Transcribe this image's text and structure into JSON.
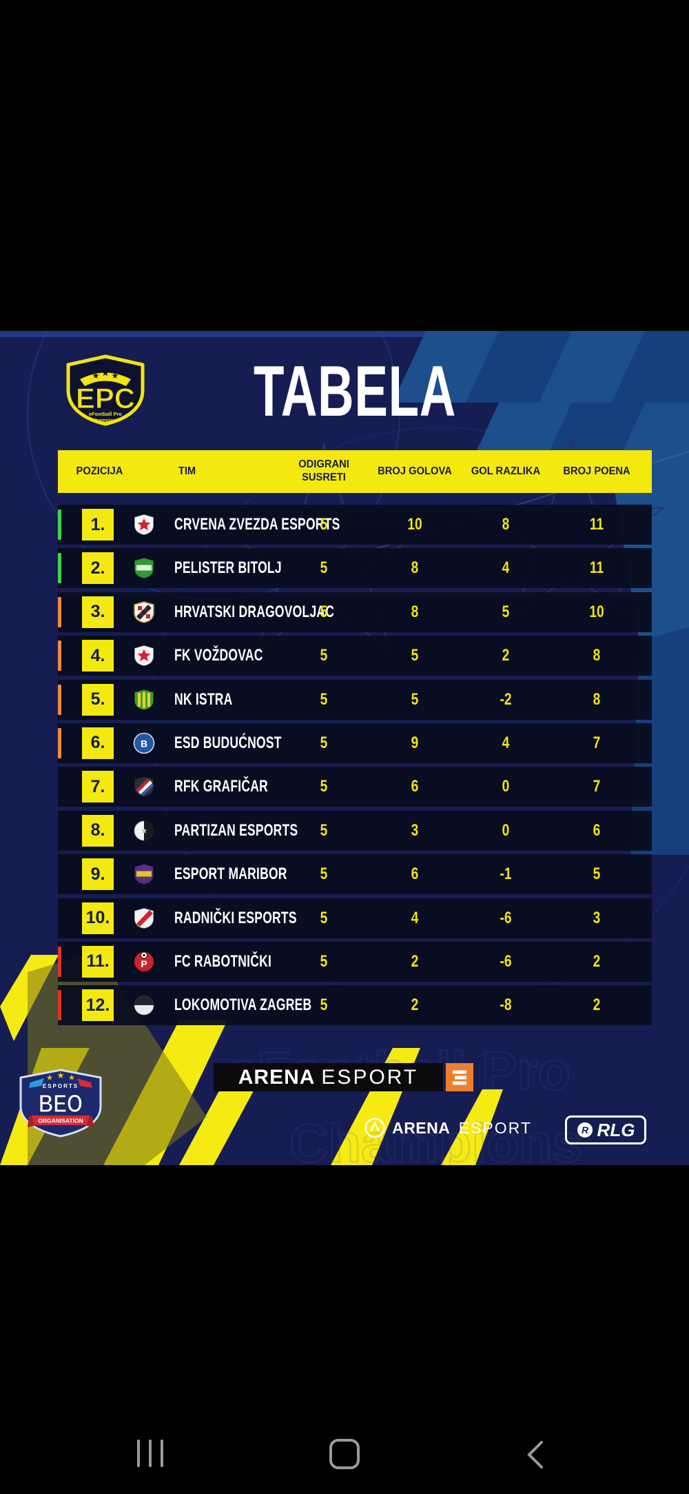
{
  "poster": {
    "epc_logo": {
      "abbr": "EPC",
      "subtitle_line1": "eFootball Pro",
      "subtitle_line2": "Champions"
    },
    "title": "TABELA",
    "table": {
      "headers": {
        "position": "POZICIJA",
        "team": "TIM",
        "played": "ODIGRANI SUSRETI",
        "goals": "BROJ GOLOVA",
        "goal_diff": "GOL RAZLIKA",
        "points": "BROJ POENA"
      },
      "rows": [
        {
          "pos": "1.",
          "team": "CRVENA ZVEZDA ESPORTS",
          "played": "5",
          "goals": "10",
          "goal_diff": "8",
          "points": "11",
          "bar": "#3ed34d",
          "crest": {
            "shape": "shield",
            "c1": "#f4f4f6",
            "c2": "#d6222a",
            "detail": "star"
          }
        },
        {
          "pos": "2.",
          "team": "PELISTER BITOLJ",
          "played": "5",
          "goals": "8",
          "goal_diff": "4",
          "points": "11",
          "bar": "#3ed34d",
          "crest": {
            "shape": "shield",
            "c1": "#2f9b37",
            "c2": "#dff0da",
            "detail": "band"
          }
        },
        {
          "pos": "3.",
          "team": "HRVATSKI DRAGOVOLJAC",
          "played": "5",
          "goals": "8",
          "goal_diff": "5",
          "points": "10",
          "bar": "#f18a3d",
          "crest": {
            "shape": "shield",
            "c1": "#f4f4f6",
            "c2": "#c8242c",
            "c3": "#b08f2f",
            "detail": "checker"
          }
        },
        {
          "pos": "4.",
          "team": "FK VOŽDOVAC",
          "played": "5",
          "goals": "5",
          "goal_diff": "2",
          "points": "8",
          "bar": "#f18a3d",
          "crest": {
            "shape": "shield",
            "c1": "#f4f4f6",
            "c2": "#d6222a",
            "detail": "star"
          }
        },
        {
          "pos": "5.",
          "team": "NK ISTRA",
          "played": "5",
          "goals": "5",
          "goal_diff": "-2",
          "points": "8",
          "bar": "#f18a3d",
          "crest": {
            "shape": "shield",
            "c1": "#3f9b2f",
            "c2": "#e8d22a",
            "detail": "stripes"
          }
        },
        {
          "pos": "6.",
          "team": "ESD BUDUĆNOST",
          "played": "5",
          "goals": "9",
          "goal_diff": "4",
          "points": "7",
          "bar": "#f18a3d",
          "crest": {
            "shape": "circle",
            "c1": "#2456a8",
            "c2": "#ffffff",
            "c3": "#cfd8ea",
            "glyph": "B"
          }
        },
        {
          "pos": "7.",
          "team": "RFK GRAFIČAR",
          "played": "5",
          "goals": "6",
          "goal_diff": "0",
          "points": "7",
          "bar": "none",
          "crest": {
            "shape": "shield",
            "c1": "#2a2e38",
            "c2": "#c8242c",
            "detail": "tricolor"
          }
        },
        {
          "pos": "8.",
          "team": "PARTIZAN ESPORTS",
          "played": "5",
          "goals": "3",
          "goal_diff": "0",
          "points": "6",
          "bar": "none",
          "crest": {
            "shape": "circle",
            "c1": "#f2f2f2",
            "c2": "#1a1a1e",
            "detail": "halves"
          }
        },
        {
          "pos": "9.",
          "team": "ESPORT MARIBOR",
          "played": "5",
          "goals": "6",
          "goal_diff": "-1",
          "points": "5",
          "bar": "none",
          "crest": {
            "shape": "shield",
            "c1": "#5a2d86",
            "c2": "#e8c51f",
            "detail": "band"
          }
        },
        {
          "pos": "10.",
          "team": "RADNIČKI ESPORTS",
          "played": "5",
          "goals": "4",
          "goal_diff": "-6",
          "points": "3",
          "bar": "none",
          "crest": {
            "shape": "shield",
            "c1": "#f4f4f6",
            "c2": "#d6222a",
            "detail": "diag"
          }
        },
        {
          "pos": "11.",
          "team": "FC RABOTNIČKI",
          "played": "5",
          "goals": "2",
          "goal_diff": "-6",
          "points": "2",
          "bar": "#e33222",
          "crest": {
            "shape": "circle",
            "c1": "#c8242c",
            "c2": "#ffffff",
            "detail": "ball",
            "glyph": "P"
          }
        },
        {
          "pos": "12.",
          "team": "LOKOMOTIVA ZAGREB",
          "played": "5",
          "goals": "2",
          "goal_diff": "-8",
          "points": "2",
          "bar": "#e33222",
          "crest": {
            "shape": "circle",
            "c1": "#e8eaee",
            "c2": "#23262e",
            "detail": "halvesH"
          }
        }
      ]
    },
    "watermark": {
      "line1": "eFootball Pro",
      "line2": "Champions"
    },
    "sponsors": {
      "arena_banner": {
        "bold": "ARENA",
        "light": "ESPORT",
        "badge": "E"
      },
      "arena_small": {
        "bold": "ARENA",
        "light": "ESPORT"
      },
      "rlg": "RLG",
      "beo": {
        "top": "ESPORTS",
        "main": "BEO",
        "banner": "ORGANISATION"
      }
    }
  },
  "nav_bar": {
    "icons": [
      "recents-icon",
      "home-icon",
      "back-icon"
    ]
  },
  "colors": {
    "accent_yellow": "#f3e90e",
    "bg_navy": "#161d52",
    "checker_blue": "#1d4f8d",
    "row_dark": "#0a0e1e",
    "bar_green": "#3ed34d",
    "bar_orange": "#f18a3d",
    "bar_red": "#e33222",
    "arena_orange": "#ee7e2e"
  }
}
